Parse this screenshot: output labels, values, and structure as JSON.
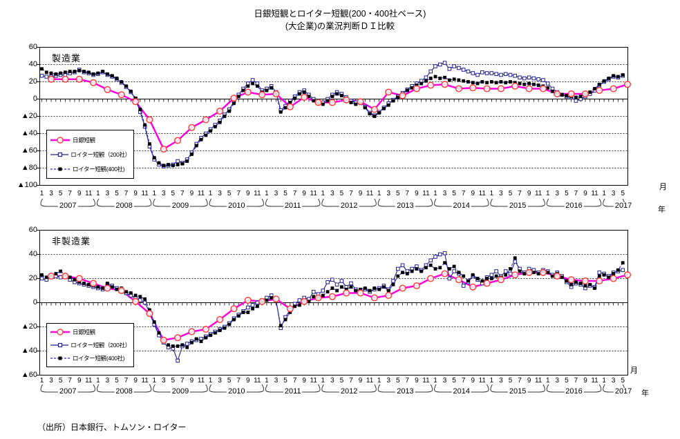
{
  "title": {
    "line1": "日銀短観とロイター短観(200・400社ベース)",
    "line2": "(大企業)の業況判断ＤＩ比較"
  },
  "source": "（出所）日本銀行、トムソン・ロイター",
  "axis": {
    "month_unit": "月",
    "year_unit": "年",
    "negative_prefix": "▲",
    "years": [
      "2007",
      "2008",
      "2009",
      "2010",
      "2011",
      "2012",
      "2013",
      "2014",
      "2015",
      "2016",
      "2017"
    ],
    "month_tick_labels": [
      "1",
      "3",
      "5",
      "7",
      "9",
      "11"
    ]
  },
  "legend": [
    "日銀短観",
    "ロイター短観（200社）",
    "ロイター短観(400社)"
  ],
  "colors": {
    "boj_line": "#FF00E0",
    "boj_marker": "#FF4040",
    "reuters200_line": "#1F1F90",
    "reuters400_line": "#2A2ACF",
    "reuters400_marker": "#000000",
    "grid": "#000000"
  },
  "chart_data": [
    {
      "type": "line",
      "title": "製造業",
      "ylim": [
        -100,
        60
      ],
      "ytick_interval": 20,
      "x_start": "2007-01",
      "x_end": "2017-06",
      "x_unit": "month",
      "grid": "horizontal dashed every 20, solid zero axis with monthly ticks",
      "legend_position": "inside mid-left",
      "series": [
        {
          "name": "日銀短観",
          "frequency": "quarterly",
          "line": "magenta thick solid",
          "marker": "open circle",
          "x_month_indices": [
            2,
            5,
            8,
            11,
            14,
            17,
            20,
            23,
            26,
            29,
            32,
            35,
            38,
            41,
            44,
            47,
            50,
            53,
            56,
            59,
            62,
            65,
            68,
            71,
            74,
            77,
            80,
            83,
            86,
            89,
            92,
            95,
            98,
            101,
            104,
            107,
            110,
            113,
            116,
            119,
            122,
            125
          ],
          "values": [
            23,
            23,
            23,
            19,
            11,
            5,
            -3,
            -24,
            -58,
            -48,
            -33,
            -24,
            -14,
            1,
            8,
            5,
            6,
            -9,
            2,
            -4,
            -4,
            -1,
            -3,
            -12,
            8,
            4,
            12,
            16,
            17,
            12,
            13,
            12,
            12,
            15,
            12,
            12,
            6,
            6,
            6,
            10,
            12,
            17
          ]
        },
        {
          "name": "ロイター短観（200社）",
          "frequency": "monthly",
          "line": "navy thin solid",
          "marker": "open square",
          "values": [
            27,
            26,
            26,
            27,
            28,
            28,
            30,
            31,
            34,
            31,
            30,
            28,
            29,
            31,
            28,
            26,
            23,
            19,
            14,
            8,
            0,
            -15,
            -32,
            -55,
            -70,
            -76,
            -78,
            -77,
            -76,
            -72,
            -74,
            -70,
            -62,
            -52,
            -45,
            -40,
            -35,
            -30,
            -25,
            -18,
            -12,
            -3,
            5,
            12,
            18,
            22,
            18,
            10,
            12,
            15,
            8,
            -13,
            -8,
            -2,
            3,
            8,
            10,
            5,
            0,
            -3,
            -4,
            0,
            5,
            8,
            6,
            2,
            -2,
            -4,
            -3,
            -9,
            -16,
            -19,
            -15,
            -10,
            -5,
            -1,
            3,
            7,
            11,
            15,
            18,
            21,
            25,
            32,
            38,
            40,
            42,
            35,
            38,
            36,
            34,
            32,
            30,
            28,
            31,
            30,
            30,
            29,
            28,
            29,
            28,
            27,
            25,
            24,
            25,
            24,
            23,
            22,
            18,
            12,
            8,
            5,
            3,
            2,
            -2,
            0,
            3,
            6,
            10,
            16,
            20,
            23,
            26,
            25,
            27
          ]
        },
        {
          "name": "ロイター短観(400社)",
          "frequency": "monthly",
          "line": "blue thin dashed",
          "marker": "filled black square",
          "values": [
            35,
            31,
            30,
            29,
            30,
            31,
            32,
            32,
            33,
            32,
            31,
            29,
            30,
            32,
            29,
            27,
            24,
            20,
            15,
            9,
            1,
            -12,
            -30,
            -52,
            -68,
            -74,
            -77,
            -76,
            -77,
            -76,
            -75,
            -72,
            -64,
            -54,
            -47,
            -42,
            -37,
            -32,
            -27,
            -20,
            -14,
            -5,
            3,
            10,
            15,
            18,
            15,
            8,
            10,
            13,
            6,
            -15,
            -10,
            -4,
            1,
            6,
            8,
            3,
            -2,
            -5,
            -6,
            -2,
            3,
            6,
            4,
            0,
            -4,
            -6,
            -5,
            -10,
            -17,
            -20,
            -16,
            -11,
            -7,
            -2,
            2,
            6,
            10,
            13,
            16,
            18,
            21,
            24,
            26,
            24,
            25,
            22,
            23,
            22,
            21,
            20,
            19,
            18,
            20,
            19,
            20,
            19,
            20,
            19,
            20,
            19,
            18,
            17,
            18,
            17,
            16,
            15,
            13,
            9,
            7,
            5,
            4,
            3,
            2,
            3,
            5,
            8,
            12,
            17,
            21,
            24,
            27,
            26,
            28
          ]
        }
      ]
    },
    {
      "type": "line",
      "title": "非製造業",
      "ylim": [
        -60,
        60
      ],
      "ytick_interval": 20,
      "x_start": "2007-01",
      "x_end": "2017-06",
      "x_unit": "month",
      "grid": "horizontal dashed every 20, solid zero axis with monthly ticks",
      "legend_position": "inside mid-left",
      "series": [
        {
          "name": "日銀短観",
          "frequency": "quarterly",
          "line": "magenta thick solid",
          "marker": "open circle",
          "x_month_indices": [
            2,
            5,
            8,
            11,
            14,
            17,
            20,
            23,
            26,
            29,
            32,
            35,
            38,
            41,
            44,
            47,
            50,
            53,
            56,
            59,
            62,
            65,
            68,
            71,
            74,
            77,
            80,
            83,
            86,
            89,
            92,
            95,
            98,
            101,
            104,
            107,
            110,
            113,
            116,
            119,
            122,
            125
          ],
          "values": [
            22,
            22,
            20,
            16,
            12,
            10,
            1,
            -9,
            -31,
            -29,
            -24,
            -22,
            -14,
            -5,
            2,
            1,
            3,
            -5,
            1,
            4,
            5,
            8,
            8,
            4,
            6,
            12,
            14,
            20,
            24,
            19,
            13,
            16,
            19,
            23,
            25,
            25,
            22,
            19,
            18,
            18,
            20,
            23
          ]
        },
        {
          "name": "ロイター短観（200社）",
          "frequency": "monthly",
          "line": "navy thin solid",
          "marker": "open square",
          "values": [
            20,
            19,
            21,
            22,
            21,
            22,
            19,
            17,
            16,
            15,
            14,
            13,
            12,
            11,
            15,
            14,
            12,
            10,
            8,
            6,
            4,
            2,
            0,
            -8,
            -18,
            -27,
            -33,
            -37,
            -38,
            -48,
            -36,
            -34,
            -32,
            -31,
            -30,
            -28,
            -26,
            -24,
            -22,
            -20,
            -17,
            -13,
            -10,
            -7,
            -4,
            -2,
            0,
            2,
            4,
            6,
            2,
            -21,
            -12,
            -6,
            -1,
            2,
            4,
            3,
            9,
            7,
            10,
            17,
            19,
            15,
            18,
            13,
            16,
            11,
            9,
            11,
            9,
            11,
            12,
            14,
            11,
            18,
            28,
            31,
            26,
            28,
            30,
            27,
            31,
            35,
            38,
            40,
            41,
            20,
            26,
            24,
            14,
            17,
            22,
            19,
            16,
            21,
            23,
            26,
            22,
            26,
            24,
            34,
            28,
            25,
            28,
            27,
            25,
            27,
            26,
            23,
            25,
            22,
            17,
            13,
            16,
            15,
            12,
            14,
            13,
            25,
            24,
            22,
            25,
            26,
            27
          ]
        },
        {
          "name": "ロイター短観(400社)",
          "frequency": "monthly",
          "line": "blue thin dashed",
          "marker": "filled black square",
          "values": [
            23,
            21,
            22,
            24,
            26,
            23,
            21,
            19,
            17,
            16,
            15,
            14,
            13,
            12,
            16,
            13,
            11,
            12,
            9,
            8,
            6,
            5,
            3,
            -6,
            -16,
            -25,
            -31,
            -35,
            -36,
            -36,
            -35,
            -37,
            -33,
            -30,
            -32,
            -29,
            -27,
            -25,
            -23,
            -21,
            -18,
            -14,
            -11,
            -8,
            -8,
            -5,
            -3,
            1,
            2,
            4,
            1,
            -19,
            -14,
            -8,
            -3,
            -2,
            2,
            1,
            5,
            4,
            6,
            9,
            12,
            10,
            13,
            11,
            13,
            10,
            11,
            12,
            10,
            12,
            11,
            13,
            10,
            15,
            22,
            25,
            24,
            26,
            28,
            26,
            29,
            31,
            28,
            29,
            33,
            28,
            30,
            25,
            22,
            18,
            23,
            20,
            18,
            20,
            20,
            22,
            21,
            23,
            28,
            37,
            26,
            24,
            26,
            25,
            24,
            26,
            25,
            22,
            24,
            21,
            18,
            15,
            17,
            16,
            14,
            15,
            12,
            22,
            23,
            21,
            24,
            27,
            33
          ]
        }
      ]
    }
  ]
}
